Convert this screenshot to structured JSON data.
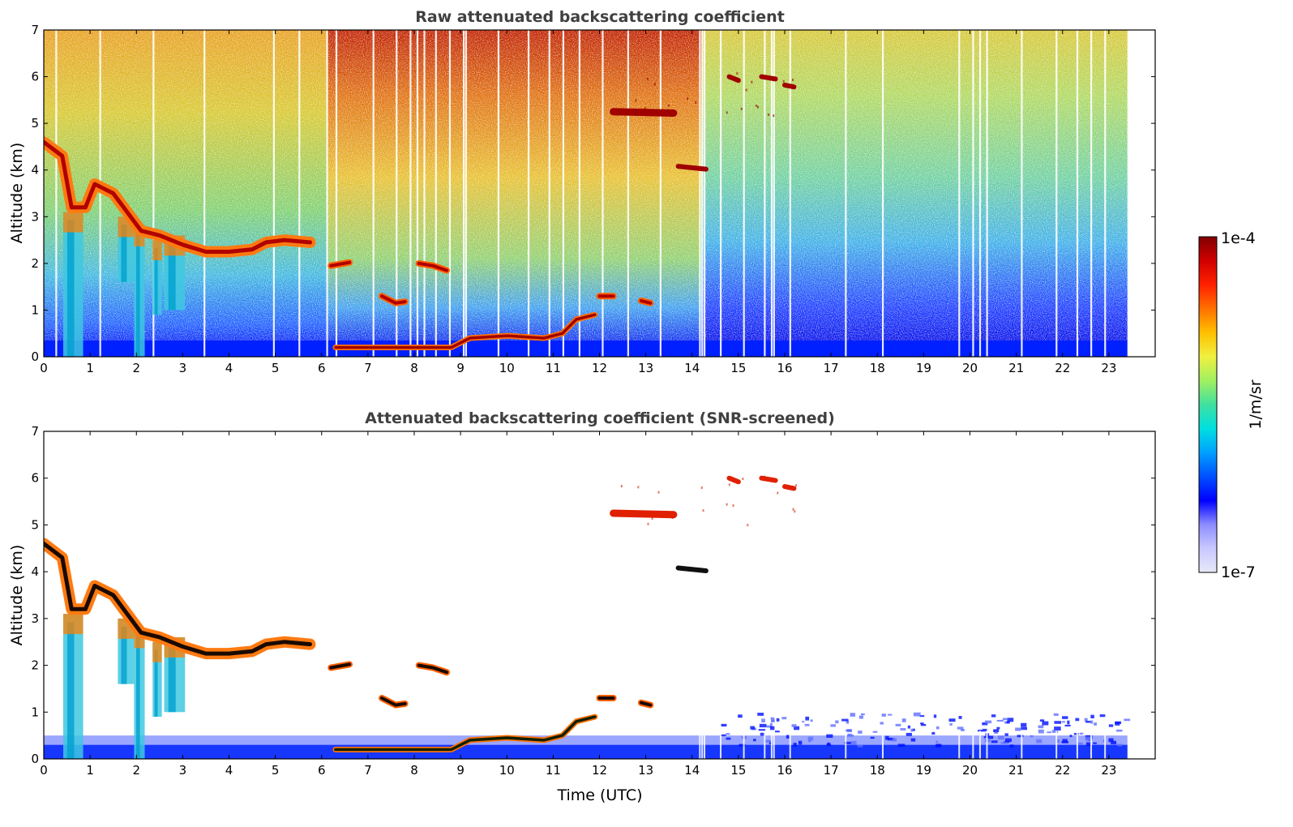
{
  "chart_data": [
    {
      "type": "heatmap",
      "title": "Raw attenuated backscattering coefficient",
      "xlabel": "",
      "ylabel": "Altitude (km)",
      "xlim": [
        0,
        24
      ],
      "ylim": [
        0,
        7
      ],
      "x_ticks": [
        "0",
        "1",
        "2",
        "3",
        "4",
        "5",
        "6",
        "7",
        "8",
        "9",
        "10",
        "11",
        "12",
        "13",
        "14",
        "15",
        "16",
        "17",
        "18",
        "19",
        "20",
        "21",
        "22",
        "23"
      ],
      "y_ticks": [
        "0",
        "1",
        "2",
        "3",
        "4",
        "5",
        "6",
        "7"
      ],
      "data_end_time": 23.4,
      "color_scale": "log",
      "background_noise": {
        "surface": "low (blue)",
        "aloft_0_to_13h": "high (orange-red)",
        "aloft_14_to_23h": "moderate (green-yellow)"
      },
      "features": [
        {
          "name": "descending cloud layer",
          "points": [
            [
              0.0,
              4.6
            ],
            [
              0.4,
              4.3
            ],
            [
              0.6,
              3.2
            ],
            [
              0.9,
              3.2
            ],
            [
              1.1,
              3.7
            ],
            [
              1.5,
              3.5
            ],
            [
              1.8,
              3.1
            ],
            [
              2.1,
              2.7
            ],
            [
              2.5,
              2.6
            ],
            [
              3.0,
              2.4
            ],
            [
              3.5,
              2.25
            ],
            [
              4.0,
              2.25
            ],
            [
              4.5,
              2.3
            ],
            [
              4.8,
              2.45
            ],
            [
              5.2,
              2.5
            ],
            [
              5.75,
              2.45
            ]
          ]
        },
        {
          "name": "precipitation fall streaks",
          "points": [
            [
              0.5,
              0
            ],
            [
              0.5,
              3.0
            ],
            [
              0.85,
              3.0
            ],
            [
              0.85,
              0
            ],
            [
              2.0,
              0
            ],
            [
              2.0,
              2.8
            ],
            [
              2.2,
              2.8
            ],
            [
              2.2,
              0
            ],
            [
              2.4,
              1.0
            ],
            [
              2.9,
              1.0
            ],
            [
              2.9,
              2.6
            ],
            [
              3.4,
              2.6
            ]
          ]
        },
        {
          "name": "mid-level cloud segments",
          "points": [
            [
              6.2,
              1.95
            ],
            [
              6.6,
              2.0
            ],
            [
              7.3,
              1.3
            ],
            [
              7.8,
              1.15
            ],
            [
              8.1,
              2.0
            ],
            [
              8.7,
              1.85
            ],
            [
              12.0,
              1.3
            ],
            [
              12.3,
              1.3
            ],
            [
              12.9,
              1.2
            ],
            [
              13.1,
              1.15
            ]
          ]
        },
        {
          "name": "boundary-layer top",
          "points": [
            [
              6.3,
              0.2
            ],
            [
              7.5,
              0.2
            ],
            [
              8.8,
              0.2
            ],
            [
              9.2,
              0.4
            ],
            [
              10.0,
              0.45
            ],
            [
              10.8,
              0.4
            ],
            [
              11.2,
              0.5
            ],
            [
              11.5,
              0.8
            ],
            [
              11.9,
              0.9
            ]
          ]
        },
        {
          "name": "upper cloud layers",
          "points": [
            [
              12.3,
              5.25
            ],
            [
              13.6,
              5.25
            ],
            [
              13.7,
              4.1
            ],
            [
              14.3,
              4.05
            ],
            [
              14.8,
              6.0
            ],
            [
              15.0,
              5.9
            ],
            [
              15.5,
              6.0
            ],
            [
              15.8,
              5.85
            ],
            [
              16.0,
              5.8
            ],
            [
              16.4,
              5.5
            ]
          ]
        }
      ]
    },
    {
      "type": "heatmap",
      "title": "Attenuated backscattering coefficient (SNR-screened)",
      "xlabel": "Time (UTC)",
      "ylabel": "Altitude (km)",
      "xlim": [
        0,
        24
      ],
      "ylim": [
        0,
        7
      ],
      "x_ticks": [
        "0",
        "1",
        "2",
        "3",
        "4",
        "5",
        "6",
        "7",
        "8",
        "9",
        "10",
        "11",
        "12",
        "13",
        "14",
        "15",
        "16",
        "17",
        "18",
        "19",
        "20",
        "21",
        "22",
        "23"
      ],
      "y_ticks": [
        "0",
        "1",
        "2",
        "3",
        "4",
        "5",
        "6",
        "7"
      ],
      "data_end_time": 23.4,
      "color_scale": "log",
      "screened_regions": [
        "noise removed above boundary layer",
        "boundary-layer aerosol 0-0.5 km retained",
        "scattered aerosol up to 1 km after 19 UTC"
      ]
    }
  ],
  "colorbar": {
    "max_label": "1e-4",
    "min_label": "1e-7",
    "label": "1/m/sr",
    "colors": [
      "#e8e8f8",
      "#c8c8ff",
      "#8c8cff",
      "#0000ff",
      "#0050ff",
      "#00a0ff",
      "#00e0e0",
      "#40e0a0",
      "#a0f060",
      "#f0f040",
      "#ffc000",
      "#ff7000",
      "#ff2000",
      "#d00000",
      "#800000"
    ]
  }
}
